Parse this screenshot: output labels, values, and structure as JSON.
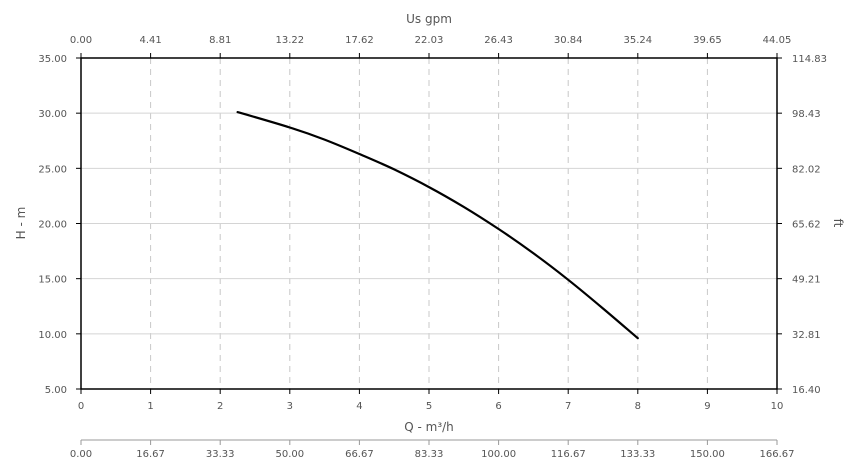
{
  "chart_data": {
    "type": "line",
    "title": "",
    "xlabel": "Q - m³/h",
    "ylabel": "H - m",
    "xlim": [
      0,
      10
    ],
    "ylim": [
      5,
      35
    ],
    "x_ticks": [
      "0",
      "1",
      "2",
      "3",
      "4",
      "5",
      "6",
      "7",
      "8",
      "9",
      "10"
    ],
    "y_ticks": [
      "5.00",
      "10.00",
      "15.00",
      "20.00",
      "25.00",
      "30.00",
      "35.00"
    ],
    "grid": true,
    "series": [
      {
        "color": "#000000",
        "x": [
          2.25,
          3.0,
          3.5,
          4.0,
          4.5,
          5.0,
          5.5,
          6.0,
          6.5,
          7.0,
          7.5,
          8.0
        ],
        "y": [
          30.1,
          28.7,
          27.6,
          26.3,
          24.9,
          23.3,
          21.5,
          19.5,
          17.3,
          14.9,
          12.3,
          9.6
        ]
      }
    ],
    "top_axis": {
      "label": "Us gpm",
      "ticks": [
        "0.00",
        "4.41",
        "8.81",
        "13.22",
        "17.62",
        "22.03",
        "26.43",
        "30.84",
        "35.24",
        "39.65",
        "44.05"
      ]
    },
    "right_axis": {
      "label": "ft",
      "ticks": [
        "16.40",
        "32.81",
        "49.21",
        "65.62",
        "82.02",
        "98.43",
        "114.83"
      ]
    },
    "bottom_axis_2": {
      "label": "",
      "ticks": [
        "0.00",
        "16.67",
        "33.33",
        "50.00",
        "66.67",
        "83.33",
        "100.00",
        "116.67",
        "133.33",
        "150.00",
        "166.67"
      ]
    }
  }
}
